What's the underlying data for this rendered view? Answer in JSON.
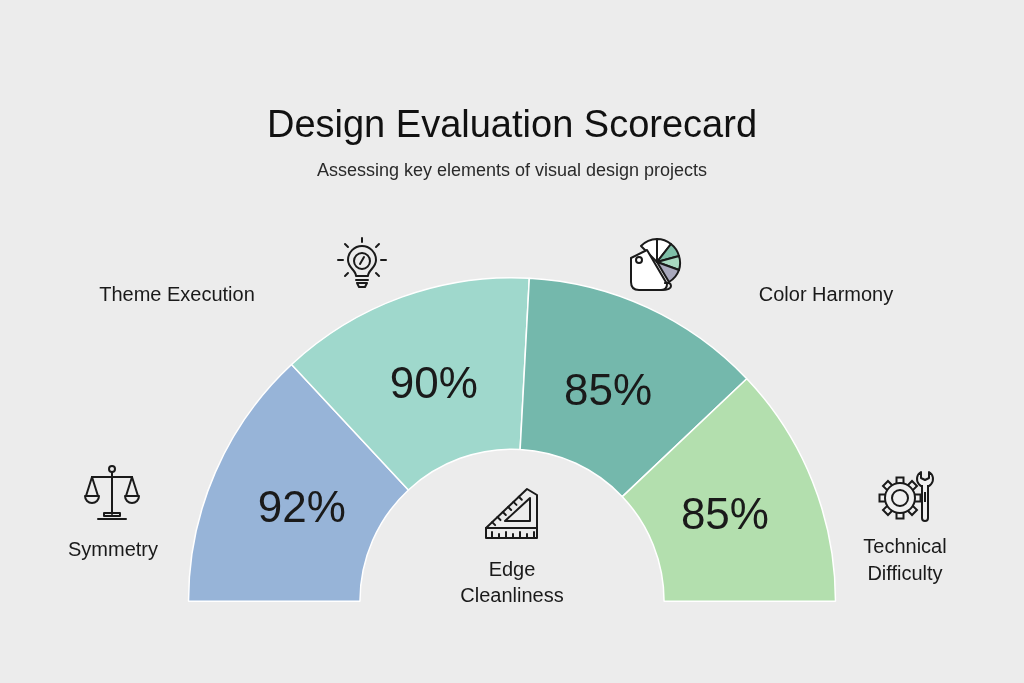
{
  "chart_data": {
    "type": "donut",
    "title": "Design Evaluation Scorecard",
    "subtitle": "Assessing key elements of visual design projects",
    "categories": [
      "Symmetry",
      "Theme Execution",
      "Color Harmony",
      "Technical Difficulty"
    ],
    "values": [
      92,
      90,
      85,
      85
    ],
    "colors": [
      "#97b4d8",
      "#9fd8cc",
      "#74b8ac",
      "#b3dfae"
    ],
    "value_labels": [
      "92%",
      "90%",
      "85%",
      "85%"
    ],
    "annotations": [
      "Edge Cleanliness"
    ]
  }
}
